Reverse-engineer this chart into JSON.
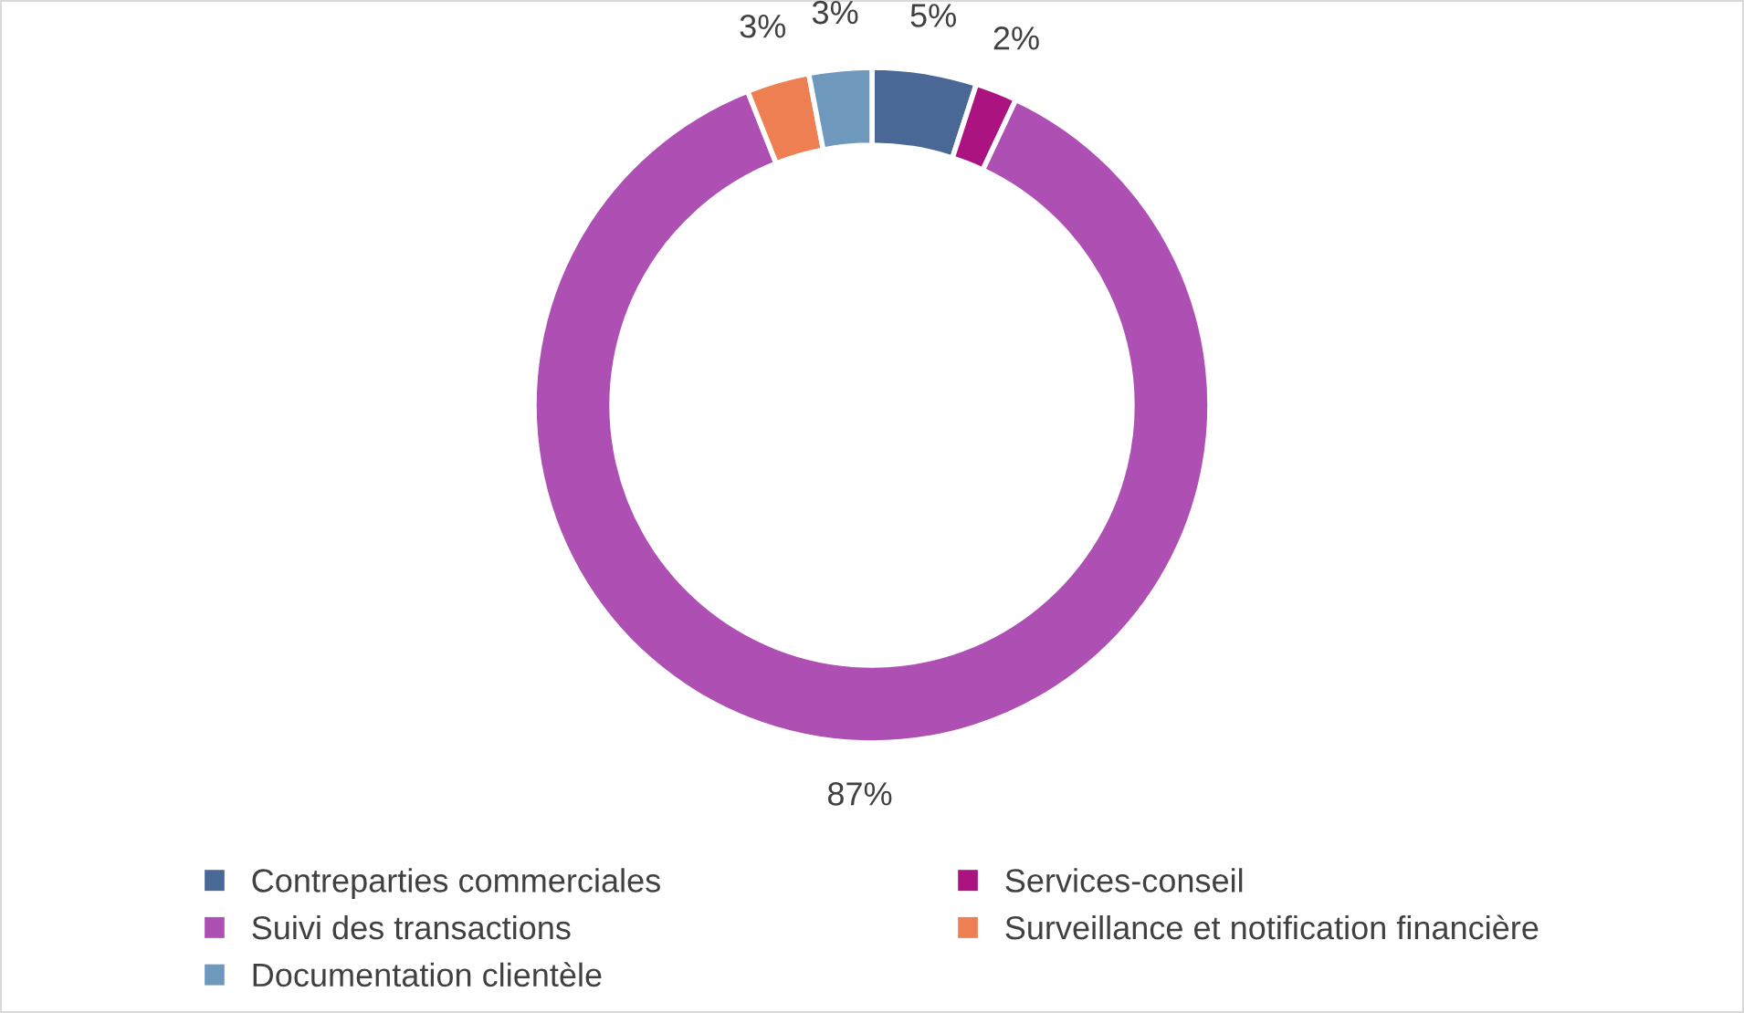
{
  "chart_data": {
    "type": "donut",
    "categories": [
      "Contreparties commerciales",
      "Services-conseil",
      "Suivi des transactions",
      "Surveillance et notification financière",
      "Documentation clientèle"
    ],
    "values": [
      5,
      2,
      87,
      3,
      3
    ],
    "colors": [
      "#4a6895",
      "#ab1480",
      "#ae4fb4",
      "#ee7f52",
      "#6f98bd"
    ],
    "value_labels": [
      "5%",
      "2%",
      "87%",
      "3%",
      "3%"
    ],
    "legend": "bottom"
  }
}
